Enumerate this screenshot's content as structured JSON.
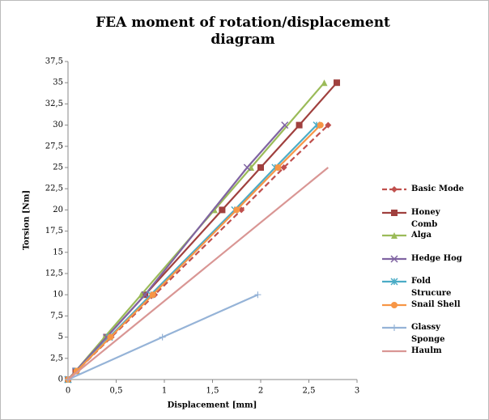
{
  "chart_data": {
    "type": "line",
    "title": "FEA moment of rotation/displacement diagram",
    "x_label": "Displacement [mm]",
    "y_label": "Torsion [Nm]",
    "xlim": [
      0,
      3
    ],
    "xticks": [
      0,
      {
        "value": 0.5,
        "label": "0,5"
      },
      1,
      {
        "value": 1.5,
        "label": "1,5"
      },
      2,
      {
        "value": 2.5,
        "label": "2,5"
      },
      3
    ],
    "ylim": [
      0,
      37.5
    ],
    "yticks": [
      0,
      {
        "value": 2.5,
        "label": "2,5"
      },
      5,
      {
        "value": 7.5,
        "label": "7,5"
      },
      10,
      {
        "value": 12.5,
        "label": "12,5"
      },
      15,
      {
        "value": 17.5,
        "label": "17,5"
      },
      20,
      {
        "value": 22.5,
        "label": "22,5"
      },
      25,
      {
        "value": 27.5,
        "label": "27,5"
      },
      30,
      {
        "value": 32.5,
        "label": "32,5"
      },
      35,
      {
        "value": 37.5,
        "label": "37,5"
      }
    ],
    "series": [
      {
        "name": "Basic Mode",
        "color": "#c0504d",
        "marker": "diamond",
        "dashed": true,
        "x": [
          0,
          0.09,
          0.45,
          0.9,
          1.8,
          2.24,
          2.7
        ],
        "values": [
          0,
          1,
          5,
          10,
          20,
          25,
          30
        ]
      },
      {
        "name": "Honey Comb",
        "color": "#a0403e",
        "marker": "square",
        "x": [
          0,
          0.08,
          0.4,
          0.8,
          1.6,
          2.0,
          2.4,
          2.79
        ],
        "values": [
          0,
          1,
          5,
          10,
          20,
          25,
          30,
          35
        ]
      },
      {
        "name": "Alga",
        "color": "#9bbb59",
        "marker": "triangle",
        "x": [
          0,
          0.08,
          0.38,
          0.76,
          1.52,
          1.9,
          2.66
        ],
        "values": [
          0,
          1,
          5,
          10,
          20,
          25,
          35
        ]
      },
      {
        "name": "Hedge Hog",
        "color": "#8064a2",
        "marker": "x",
        "x": [
          0,
          0.08,
          0.4,
          0.8,
          1.86,
          2.25
        ],
        "values": [
          0,
          1,
          5,
          10,
          25,
          30
        ]
      },
      {
        "name": "Fold Strucure",
        "color": "#4bacc6",
        "marker": "star",
        "x": [
          0,
          0.09,
          0.43,
          0.86,
          1.73,
          2.15,
          2.58
        ],
        "values": [
          0,
          1,
          5,
          10,
          20,
          25,
          30
        ]
      },
      {
        "name": "Snail Shell",
        "color": "#f79646",
        "marker": "circle",
        "x": [
          0,
          0.09,
          0.44,
          0.88,
          1.75,
          2.18,
          2.62
        ],
        "values": [
          0,
          1,
          5,
          10,
          20,
          25,
          30
        ]
      },
      {
        "name": "Glassy Sponge",
        "color": "#95b3d7",
        "marker": "plus",
        "x": [
          0,
          0.98,
          1.97
        ],
        "values": [
          0,
          5,
          10
        ]
      },
      {
        "name": "Haulm",
        "color": "#d99694",
        "marker": "none",
        "x": [
          0,
          2.7
        ],
        "values": [
          0,
          25
        ]
      }
    ]
  }
}
